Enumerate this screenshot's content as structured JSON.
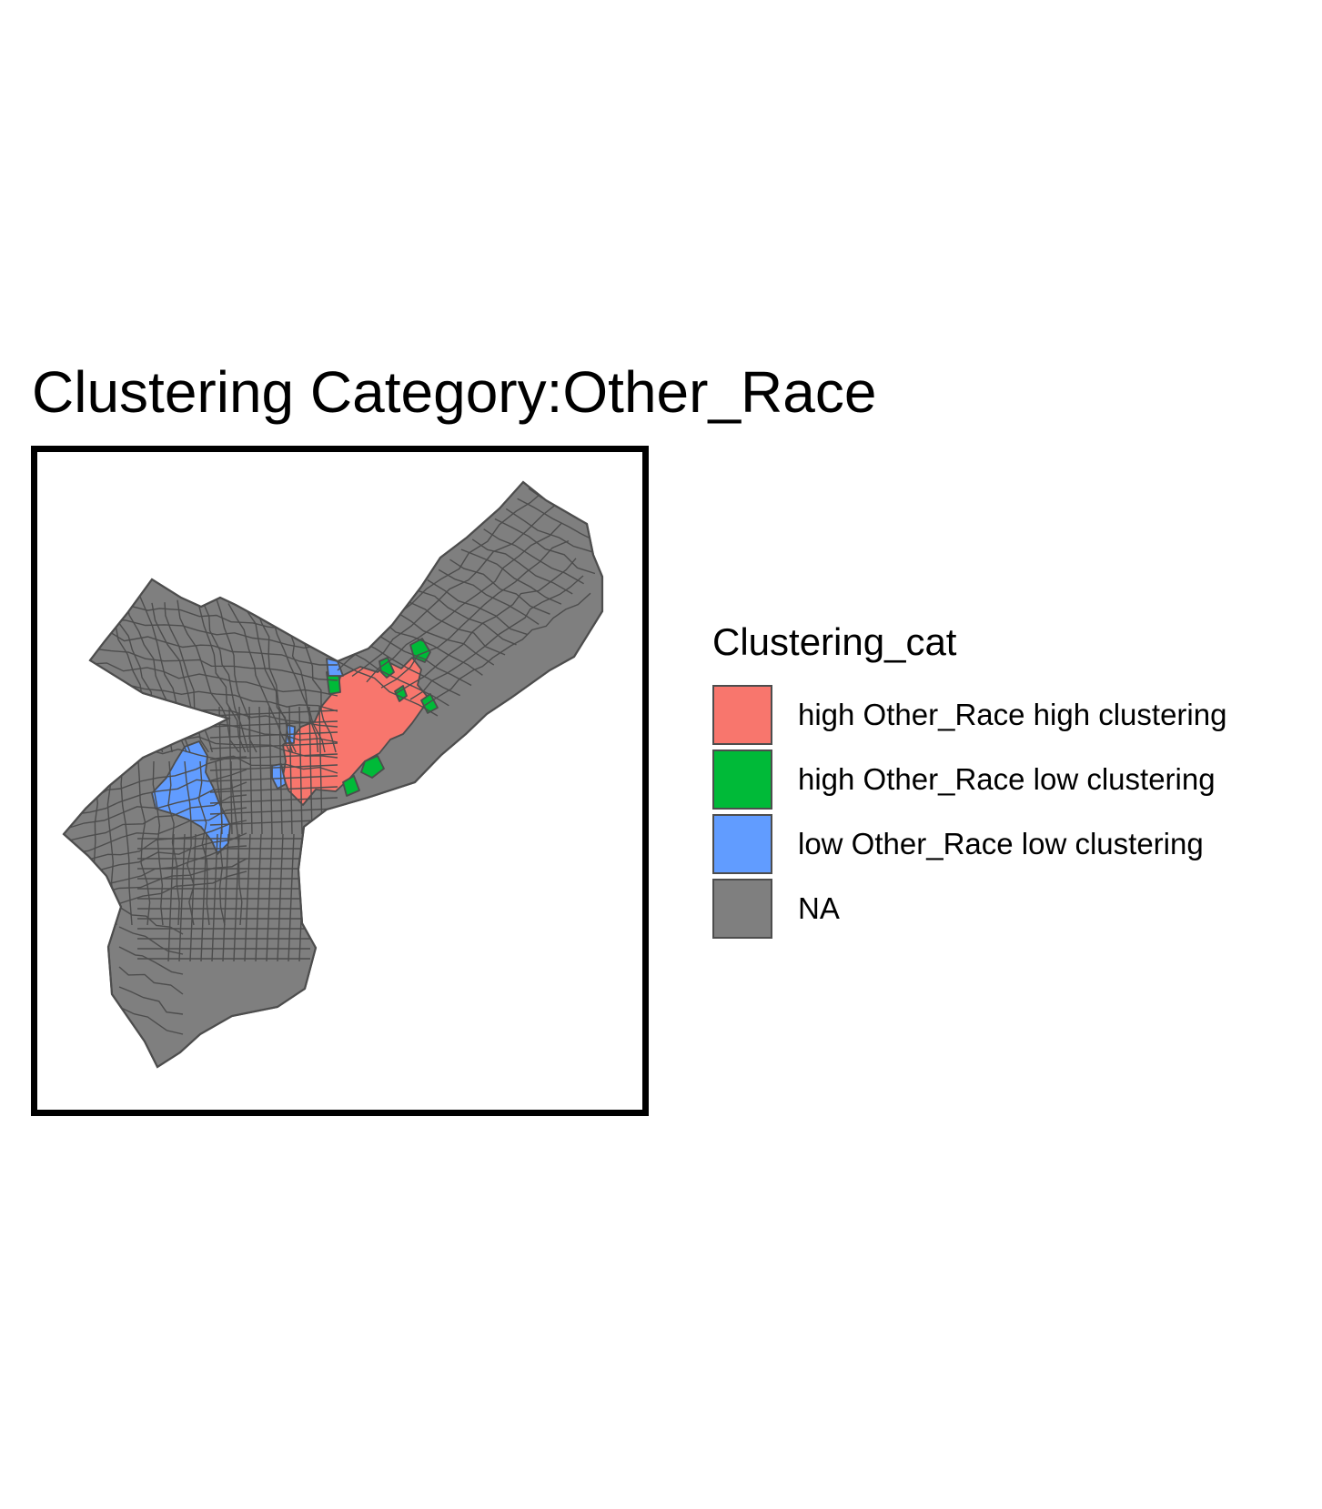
{
  "title": "Clustering Category:Other_Race",
  "legend": {
    "title": "Clustering_cat",
    "items": [
      {
        "label": "high Other_Race high clustering",
        "color": "#F8766D"
      },
      {
        "label": "high Other_Race low clustering",
        "color": "#00BA38"
      },
      {
        "label": "low Other_Race low clustering",
        "color": "#619CFF"
      },
      {
        "label": "NA",
        "color": "#7F7F7F"
      }
    ]
  },
  "map": {
    "na_color": "#7F7F7F",
    "border_color": "#4D4D4D",
    "region_counts": {
      "high Other_Race high clustering": "many",
      "high Other_Race low clustering": "few",
      "low Other_Race low clustering": "few"
    }
  }
}
